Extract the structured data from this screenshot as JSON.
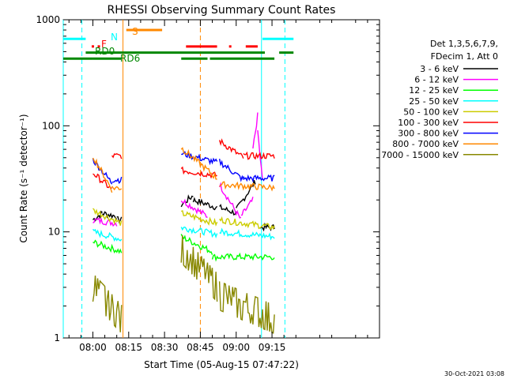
{
  "chart_data": {
    "type": "line",
    "title": "RHESSI Observing Summary Count Rates",
    "xlabel": "Start Time (05-Aug-15 07:47:22)",
    "ylabel": "Count Rate (s⁻¹ detector⁻¹)",
    "yscale": "log",
    "ylim": [
      1,
      1000
    ],
    "xlim_minutes": [
      -12.4,
      120
    ],
    "x_ticks": [
      "08:00",
      "08:15",
      "08:30",
      "08:45",
      "09:00",
      "09:15"
    ],
    "y_ticks": [
      "1",
      "10",
      "100",
      "1000"
    ],
    "grid": false,
    "legend_position": "right",
    "legend_header": [
      "Det 1,3,5,6,7,9,",
      "FDecim 1, Att 0"
    ],
    "timestamp": "30-Oct-2021 03:08",
    "series": [
      {
        "name": "3 - 6 keV",
        "color": "#000000",
        "segments": [
          {
            "t0": 0,
            "t1": 4,
            "v0": 13,
            "v1": 15,
            "step": false
          },
          {
            "t0": 4,
            "t1": 10,
            "v0": 15,
            "v1": 14,
            "step": false
          },
          {
            "t0": 10,
            "t1": 12,
            "v0": 13,
            "v1": 13,
            "step": false
          },
          {
            "t0": 37,
            "t1": 42,
            "v0": 18,
            "v1": 22,
            "step": false
          },
          {
            "t0": 42,
            "t1": 52,
            "v0": 20,
            "v1": 17,
            "step": false
          },
          {
            "t0": 53,
            "t1": 60,
            "v0": 17,
            "v1": 15,
            "step": false
          },
          {
            "t0": 60,
            "t1": 68,
            "v0": 16,
            "v1": 30,
            "step": false
          },
          {
            "t0": 70,
            "t1": 76,
            "v0": 11,
            "v1": 11,
            "step": false
          }
        ]
      },
      {
        "name": "6 - 12 keV",
        "color": "#ff00ff",
        "segments": [
          {
            "t0": 0,
            "t1": 10,
            "v0": 13,
            "v1": 12,
            "step": false
          },
          {
            "t0": 37,
            "t1": 48,
            "v0": 20,
            "v1": 14,
            "step": false
          },
          {
            "t0": 53,
            "t1": 62,
            "v0": 28,
            "v1": 13,
            "step": false
          },
          {
            "t0": 62,
            "t1": 67,
            "v0": 14,
            "v1": 20,
            "step": false
          },
          {
            "t0": 67,
            "t1": 69,
            "v0": 60,
            "v1": 125,
            "step": false
          },
          {
            "t0": 69,
            "t1": 71,
            "v0": 90,
            "v1": 30,
            "step": false
          }
        ]
      },
      {
        "name": "12 - 25 keV",
        "color": "#00ff00",
        "segments": [
          {
            "t0": 0,
            "t1": 12,
            "v0": 8,
            "v1": 6.5,
            "step": false
          },
          {
            "t0": 37,
            "t1": 50,
            "v0": 9,
            "v1": 6.5,
            "step": false
          },
          {
            "t0": 50,
            "t1": 76,
            "v0": 5.8,
            "v1": 5.8,
            "step": false
          }
        ]
      },
      {
        "name": "25 - 50 keV",
        "color": "#00ffff",
        "segments": [
          {
            "t0": 0,
            "t1": 12,
            "v0": 10,
            "v1": 8.5,
            "step": false
          },
          {
            "t0": 37,
            "t1": 52,
            "v0": 11,
            "v1": 9.5,
            "step": false
          },
          {
            "t0": 53,
            "t1": 76,
            "v0": 10,
            "v1": 9,
            "step": false
          }
        ]
      },
      {
        "name": "50 - 100 keV",
        "color": "#cccc00",
        "segments": [
          {
            "t0": 0,
            "t1": 12,
            "v0": 16,
            "v1": 12,
            "step": false
          },
          {
            "t0": 37,
            "t1": 52,
            "v0": 15,
            "v1": 12,
            "step": false
          },
          {
            "t0": 53,
            "t1": 76,
            "v0": 13,
            "v1": 11,
            "step": false
          }
        ]
      },
      {
        "name": "100 - 300 keV",
        "color": "#ff0000",
        "segments": [
          {
            "t0": 0,
            "t1": 8,
            "v0": 36,
            "v1": 25,
            "step": false
          },
          {
            "t0": 8,
            "t1": 12,
            "v0": 52,
            "v1": 52,
            "step": false
          },
          {
            "t0": 37,
            "t1": 52,
            "v0": 38,
            "v1": 34,
            "step": false
          },
          {
            "t0": 53,
            "t1": 63,
            "v0": 72,
            "v1": 50,
            "step": false
          },
          {
            "t0": 63,
            "t1": 76,
            "v0": 52,
            "v1": 52,
            "step": false
          }
        ]
      },
      {
        "name": "300 - 800 keV",
        "color": "#0000ff",
        "segments": [
          {
            "t0": 0,
            "t1": 8,
            "v0": 48,
            "v1": 29,
            "step": false
          },
          {
            "t0": 8,
            "t1": 12,
            "v0": 31,
            "v1": 31,
            "step": false
          },
          {
            "t0": 37,
            "t1": 52,
            "v0": 55,
            "v1": 45,
            "step": false
          },
          {
            "t0": 53,
            "t1": 63,
            "v0": 46,
            "v1": 31,
            "step": false
          },
          {
            "t0": 63,
            "t1": 76,
            "v0": 32,
            "v1": 32,
            "step": false
          }
        ]
      },
      {
        "name": "800 - 7000 keV",
        "color": "#ff8800",
        "segments": [
          {
            "t0": 0,
            "t1": 8,
            "v0": 52,
            "v1": 25,
            "step": false
          },
          {
            "t0": 8,
            "t1": 12,
            "v0": 26,
            "v1": 26,
            "step": false
          },
          {
            "t0": 37,
            "t1": 52,
            "v0": 62,
            "v1": 32,
            "step": false
          },
          {
            "t0": 53,
            "t1": 76,
            "v0": 28,
            "v1": 26,
            "step": false
          }
        ]
      },
      {
        "name": "7000 - 15000 keV",
        "color": "#888800",
        "segments": [
          {
            "t0": 0,
            "t1": 12,
            "v0": 3,
            "v1": 1.5,
            "step": true
          },
          {
            "t0": 37,
            "t1": 52,
            "v0": 7,
            "v1": 3,
            "step": true
          },
          {
            "t0": 53,
            "t1": 76,
            "v0": 2.5,
            "v1": 1.5,
            "step": true
          }
        ]
      }
    ],
    "flag_labels": {
      "n": "N",
      "s": "S",
      "f": "F",
      "rd0": "RD0",
      "rd6": "RD6"
    },
    "flag_bars": [
      {
        "color": "#00ffff",
        "segs": [
          [
            -12.4,
            -3
          ],
          [
            71,
            84
          ]
        ],
        "y_value": 660,
        "thick": 3
      },
      {
        "color": "#ff8800",
        "segs": [
          [
            14,
            29
          ]
        ],
        "y_value": 800,
        "thick": 3
      },
      {
        "color": "#ff0000",
        "segs": [
          [
            -0.5,
            0.5
          ],
          [
            2,
            3
          ],
          [
            39,
            52
          ],
          [
            57,
            58
          ],
          [
            64,
            69
          ]
        ],
        "y_value": 560,
        "thick": 3
      },
      {
        "color": "#008800",
        "segs": [
          [
            -3,
            72
          ],
          [
            78,
            84
          ]
        ],
        "y_value": 490,
        "thick": 3
      },
      {
        "color": "#008800",
        "segs": [
          [
            -12.4,
            0
          ],
          [
            0,
            12
          ],
          [
            37,
            48
          ],
          [
            49,
            76
          ]
        ],
        "y_value": 430,
        "thick": 3
      }
    ],
    "vlines": [
      {
        "t": -12.4,
        "color": "#00ffff",
        "dashed": false
      },
      {
        "t": -4.6,
        "color": "#00ffff",
        "dashed": true
      },
      {
        "t": 12.6,
        "color": "#ff8800",
        "dashed": false
      },
      {
        "t": 45.0,
        "color": "#ff8800",
        "dashed": true
      },
      {
        "t": 70.6,
        "color": "#00ffff",
        "dashed": false
      },
      {
        "t": 80.4,
        "color": "#00ffff",
        "dashed": true
      }
    ]
  }
}
